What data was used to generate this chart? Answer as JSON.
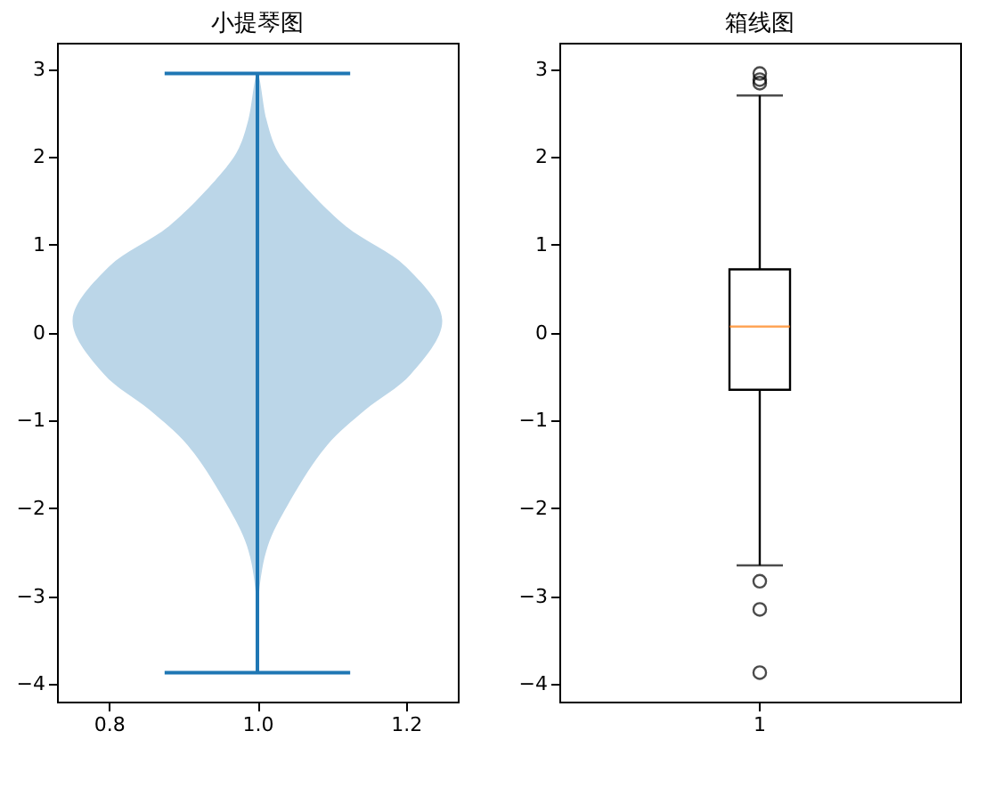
{
  "chart_data": [
    {
      "type": "area",
      "title": "小提琴图",
      "xlim": [
        0.73,
        1.27
      ],
      "xticks": [
        0.8,
        {
          "value": 1,
          "label": "1.0"
        },
        1.2
      ],
      "ylim": [
        -4.2,
        3.3
      ],
      "yticks": [
        -4,
        -3,
        -2,
        -1,
        0,
        1,
        2,
        3
      ],
      "grid": false,
      "series": [
        {
          "type": "area",
          "color": "#bbd6e8",
          "x": [
            1,
            0.998,
            0.986,
            0.959,
            0.906,
            0.855,
            0.793,
            0.751,
            0.8,
            0.882,
            0.953,
            0.975,
            0.988,
            1,
            1.012,
            1.025,
            1.047,
            1.118,
            1.2,
            1.249,
            1.207,
            1.145,
            1.094,
            1.041,
            1.014,
            1.002,
            1
          ],
          "values": [
            -3.87,
            -2.98,
            -2.43,
            -1.96,
            -1.28,
            -0.88,
            -0.47,
            0.14,
            0.75,
            1.22,
            1.83,
            2.1,
            2.43,
            2.95,
            2.43,
            2.1,
            1.83,
            1.22,
            0.75,
            0.14,
            -0.47,
            -0.88,
            -1.28,
            -1.96,
            -2.43,
            -2.98,
            -3.87
          ]
        },
        {
          "type": "line",
          "color": "#1f77b4",
          "x": [
            1,
            1
          ],
          "values": [
            -3.87,
            2.95
          ]
        },
        {
          "type": "line",
          "color": "#1f77b4",
          "x": [
            0.875,
            1.125
          ],
          "values": [
            2.95,
            2.95
          ]
        },
        {
          "type": "line",
          "color": "#1f77b4",
          "x": [
            0.875,
            1.125
          ],
          "values": [
            -3.87,
            -3.87
          ]
        }
      ]
    },
    {
      "type": "box",
      "title": "箱线图",
      "categories": [
        "1"
      ],
      "ylim": [
        -4.2,
        3.3
      ],
      "yticks": [
        -4,
        -3,
        -2,
        -1,
        0,
        1,
        2,
        3
      ],
      "grid": false,
      "series": [
        {
          "color": "#000000",
          "boxes": [
            {
              "low": -2.65,
              "q1": -0.65,
              "median": 0.07,
              "q3": 0.72,
              "high": 2.7,
              "outliers": [
                2.95,
                2.88,
                2.84,
                -2.83,
                -3.15,
                -3.87
              ]
            }
          ]
        }
      ]
    }
  ]
}
